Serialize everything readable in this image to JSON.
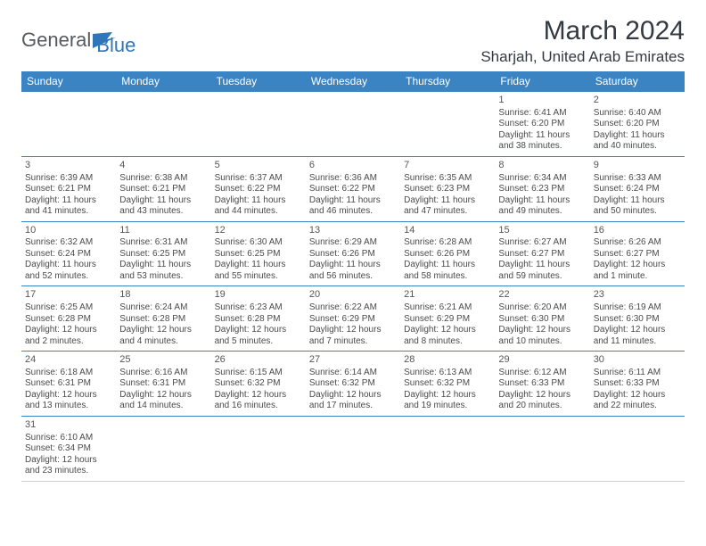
{
  "brand": {
    "part1": "General",
    "part2": "Blue",
    "logo_color": "#2f77b8",
    "text_color": "#555a5f"
  },
  "title": "March 2024",
  "location": "Sharjah, United Arab Emirates",
  "header_bg": "#3b84c4",
  "border_color": "#3b84c4",
  "weekdays": [
    "Sunday",
    "Monday",
    "Tuesday",
    "Wednesday",
    "Thursday",
    "Friday",
    "Saturday"
  ],
  "weeks": [
    [
      null,
      null,
      null,
      null,
      null,
      {
        "n": "1",
        "sr": "6:41 AM",
        "ss": "6:20 PM",
        "dl": "11 hours and 38 minutes."
      },
      {
        "n": "2",
        "sr": "6:40 AM",
        "ss": "6:20 PM",
        "dl": "11 hours and 40 minutes."
      }
    ],
    [
      {
        "n": "3",
        "sr": "6:39 AM",
        "ss": "6:21 PM",
        "dl": "11 hours and 41 minutes."
      },
      {
        "n": "4",
        "sr": "6:38 AM",
        "ss": "6:21 PM",
        "dl": "11 hours and 43 minutes."
      },
      {
        "n": "5",
        "sr": "6:37 AM",
        "ss": "6:22 PM",
        "dl": "11 hours and 44 minutes."
      },
      {
        "n": "6",
        "sr": "6:36 AM",
        "ss": "6:22 PM",
        "dl": "11 hours and 46 minutes."
      },
      {
        "n": "7",
        "sr": "6:35 AM",
        "ss": "6:23 PM",
        "dl": "11 hours and 47 minutes."
      },
      {
        "n": "8",
        "sr": "6:34 AM",
        "ss": "6:23 PM",
        "dl": "11 hours and 49 minutes."
      },
      {
        "n": "9",
        "sr": "6:33 AM",
        "ss": "6:24 PM",
        "dl": "11 hours and 50 minutes."
      }
    ],
    [
      {
        "n": "10",
        "sr": "6:32 AM",
        "ss": "6:24 PM",
        "dl": "11 hours and 52 minutes."
      },
      {
        "n": "11",
        "sr": "6:31 AM",
        "ss": "6:25 PM",
        "dl": "11 hours and 53 minutes."
      },
      {
        "n": "12",
        "sr": "6:30 AM",
        "ss": "6:25 PM",
        "dl": "11 hours and 55 minutes."
      },
      {
        "n": "13",
        "sr": "6:29 AM",
        "ss": "6:26 PM",
        "dl": "11 hours and 56 minutes."
      },
      {
        "n": "14",
        "sr": "6:28 AM",
        "ss": "6:26 PM",
        "dl": "11 hours and 58 minutes."
      },
      {
        "n": "15",
        "sr": "6:27 AM",
        "ss": "6:27 PM",
        "dl": "11 hours and 59 minutes."
      },
      {
        "n": "16",
        "sr": "6:26 AM",
        "ss": "6:27 PM",
        "dl": "12 hours and 1 minute."
      }
    ],
    [
      {
        "n": "17",
        "sr": "6:25 AM",
        "ss": "6:28 PM",
        "dl": "12 hours and 2 minutes."
      },
      {
        "n": "18",
        "sr": "6:24 AM",
        "ss": "6:28 PM",
        "dl": "12 hours and 4 minutes."
      },
      {
        "n": "19",
        "sr": "6:23 AM",
        "ss": "6:28 PM",
        "dl": "12 hours and 5 minutes."
      },
      {
        "n": "20",
        "sr": "6:22 AM",
        "ss": "6:29 PM",
        "dl": "12 hours and 7 minutes."
      },
      {
        "n": "21",
        "sr": "6:21 AM",
        "ss": "6:29 PM",
        "dl": "12 hours and 8 minutes."
      },
      {
        "n": "22",
        "sr": "6:20 AM",
        "ss": "6:30 PM",
        "dl": "12 hours and 10 minutes."
      },
      {
        "n": "23",
        "sr": "6:19 AM",
        "ss": "6:30 PM",
        "dl": "12 hours and 11 minutes."
      }
    ],
    [
      {
        "n": "24",
        "sr": "6:18 AM",
        "ss": "6:31 PM",
        "dl": "12 hours and 13 minutes."
      },
      {
        "n": "25",
        "sr": "6:16 AM",
        "ss": "6:31 PM",
        "dl": "12 hours and 14 minutes."
      },
      {
        "n": "26",
        "sr": "6:15 AM",
        "ss": "6:32 PM",
        "dl": "12 hours and 16 minutes."
      },
      {
        "n": "27",
        "sr": "6:14 AM",
        "ss": "6:32 PM",
        "dl": "12 hours and 17 minutes."
      },
      {
        "n": "28",
        "sr": "6:13 AM",
        "ss": "6:32 PM",
        "dl": "12 hours and 19 minutes."
      },
      {
        "n": "29",
        "sr": "6:12 AM",
        "ss": "6:33 PM",
        "dl": "12 hours and 20 minutes."
      },
      {
        "n": "30",
        "sr": "6:11 AM",
        "ss": "6:33 PM",
        "dl": "12 hours and 22 minutes."
      }
    ],
    [
      {
        "n": "31",
        "sr": "6:10 AM",
        "ss": "6:34 PM",
        "dl": "12 hours and 23 minutes."
      },
      null,
      null,
      null,
      null,
      null,
      null
    ]
  ],
  "labels": {
    "sunrise": "Sunrise: ",
    "sunset": "Sunset: ",
    "daylight": "Daylight: "
  }
}
